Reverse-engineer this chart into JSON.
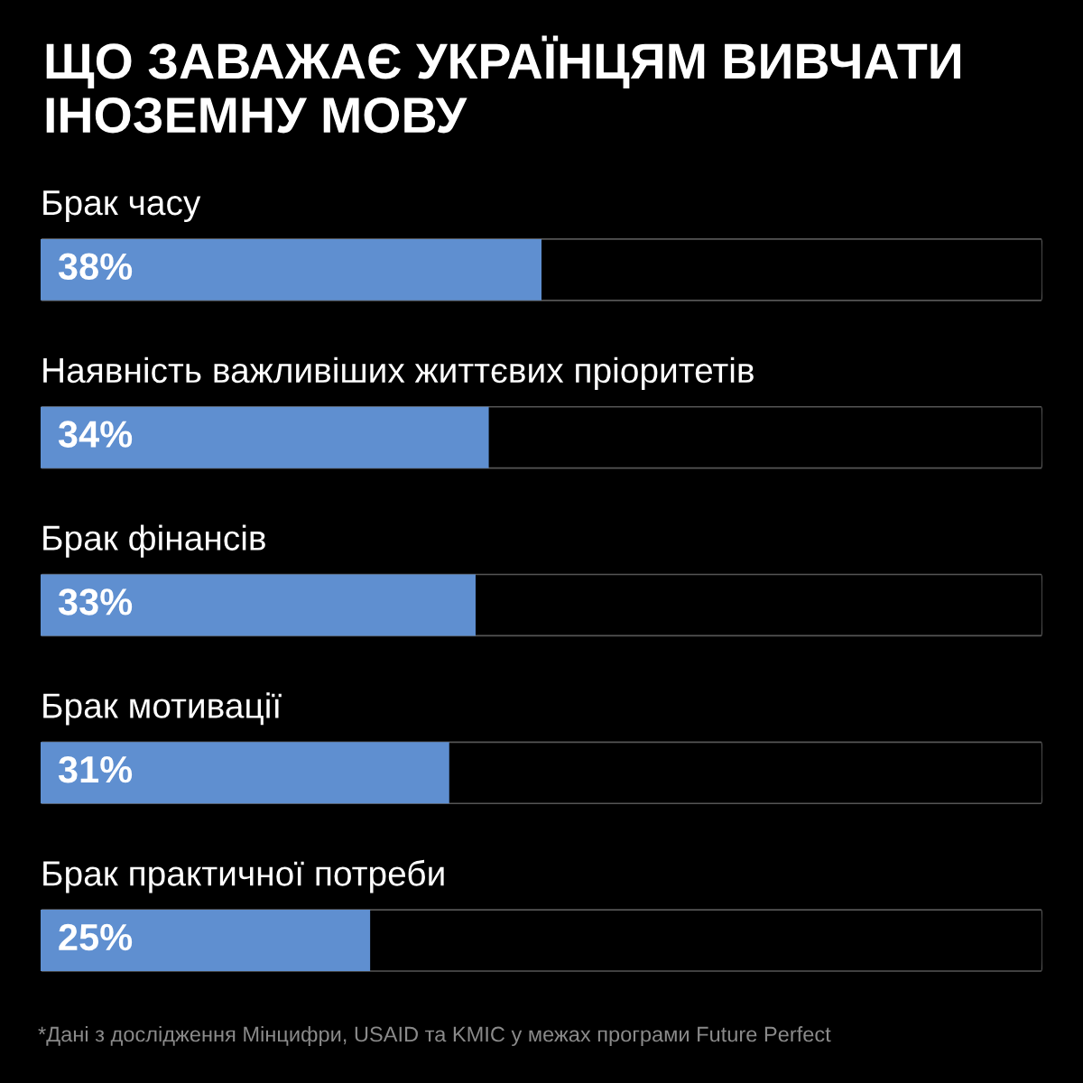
{
  "chart_data": {
    "type": "bar",
    "orientation": "horizontal",
    "title": "ЩО ЗАВАЖАЄ УКРАЇНЦЯМ ВИВЧАТИ ІНОЗЕМНУ МОВУ",
    "categories": [
      "Брак часу",
      "Наявність важливіших життєвих пріоритетів",
      "Брак фінансів",
      "Брак мотивації",
      "Брак практичної потреби"
    ],
    "values": [
      38,
      34,
      33,
      31,
      25
    ],
    "value_labels": [
      "38%",
      "34%",
      "33%",
      "31%",
      "25%"
    ],
    "color": "#5f8fd0",
    "annotations": [
      "*Дані з дослідження Мінцифри, USAID та KMIC у межах програми Future Perfect"
    ]
  }
}
